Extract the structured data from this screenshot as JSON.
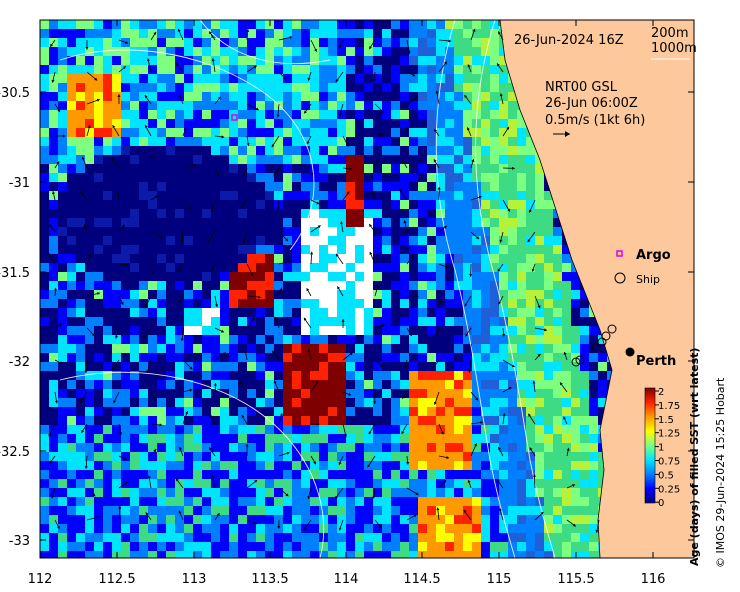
{
  "map": {
    "date_label": "26-Jun-2024 16Z",
    "depth_legend": [
      "200m",
      "1000m"
    ],
    "current_source": [
      "NRT00 GSL",
      "26-Jun 06:00Z",
      "0.5m/s (1kt 6h)"
    ],
    "legend_items": [
      {
        "label": "Argo",
        "marker": "magenta-square"
      },
      {
        "label": "Ship",
        "marker": "black-circle"
      }
    ],
    "city_label": "Perth",
    "colorbar": {
      "title": "Age (days) of filled SST (wrt latest)",
      "ticks": [
        "2",
        "1.75",
        "1.5",
        "1.25",
        "1",
        "0.75",
        "0.5",
        "0.25",
        "0"
      ],
      "colors": [
        "#00007f",
        "#0000ff",
        "#007fff",
        "#00e5ff",
        "#7fff7f",
        "#ffff00",
        "#ff9900",
        "#ff2200",
        "#7f0000"
      ]
    },
    "credit": "© IMOS 29-Jun-2024 15:25 Hobart",
    "x_axis": {
      "ticks": [
        "112",
        "112.5",
        "113",
        "113.5",
        "114",
        "114.5",
        "115",
        "115.5",
        "116"
      ]
    },
    "y_axis": {
      "ticks": [
        "-30.5",
        "-31",
        "-31.5",
        "-32",
        "-32.5",
        "-33"
      ]
    },
    "land_color": "#fdc89b"
  }
}
